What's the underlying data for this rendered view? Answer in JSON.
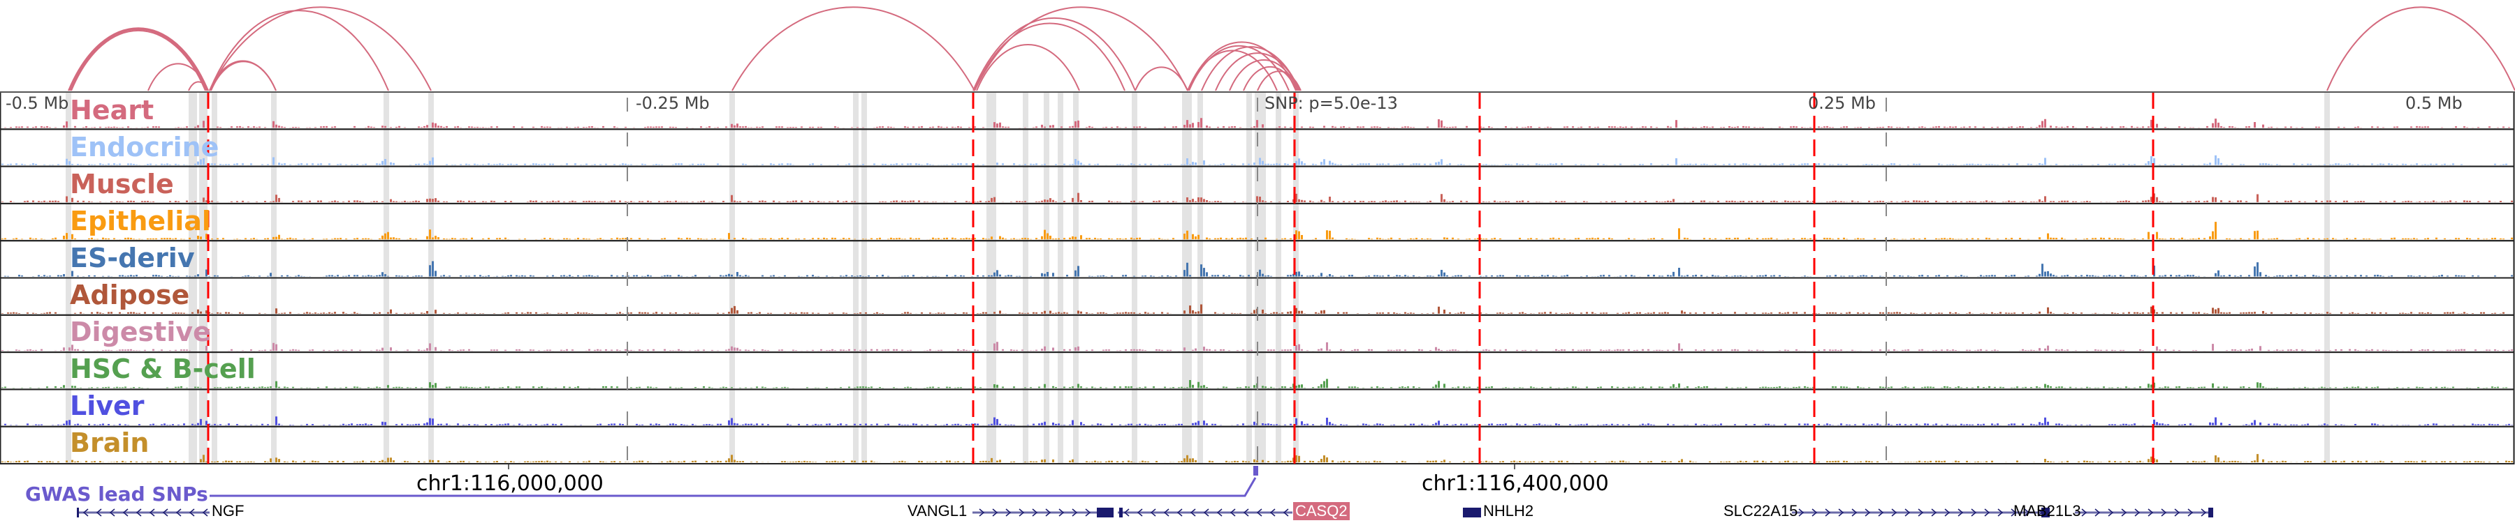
{
  "axis": {
    "left_label": "-0.5 Mb",
    "minus_quarter_label": "-0.25 Mb",
    "snp_label": "SNP: p=5.0e-13",
    "plus_quarter_label": "0.25 Mb",
    "right_label": "0.5 Mb"
  },
  "tracks": [
    {
      "label": "Heart",
      "color": "#d46a7e"
    },
    {
      "label": "Endocrine",
      "color": "#9ec2f7"
    },
    {
      "label": "Muscle",
      "color": "#c9625a"
    },
    {
      "label": "Epithelial",
      "color": "#f99b11"
    },
    {
      "label": "ES-deriv",
      "color": "#4576b0"
    },
    {
      "label": "Adipose",
      "color": "#b0573a"
    },
    {
      "label": "Digestive",
      "color": "#cc8aa8"
    },
    {
      "label": "HSC & B-cell",
      "color": "#55a050"
    },
    {
      "label": "Liver",
      "color": "#5050e0"
    },
    {
      "label": "Brain",
      "color": "#c48f2b"
    }
  ],
  "coordinates": [
    "chr1:116,000,000",
    "chr1:116,400,000"
  ],
  "gwas_label": "GWAS lead SNPs",
  "genes": [
    "NGF",
    "VANGL1",
    "CASQ2",
    "NHLH2",
    "SLC22A15",
    "MAB21L3"
  ],
  "colors": {
    "arc": "#d46a7e",
    "lead_line": "#ff0000",
    "gwas": "#6a5acd",
    "gene": "#1a1a6e"
  }
}
